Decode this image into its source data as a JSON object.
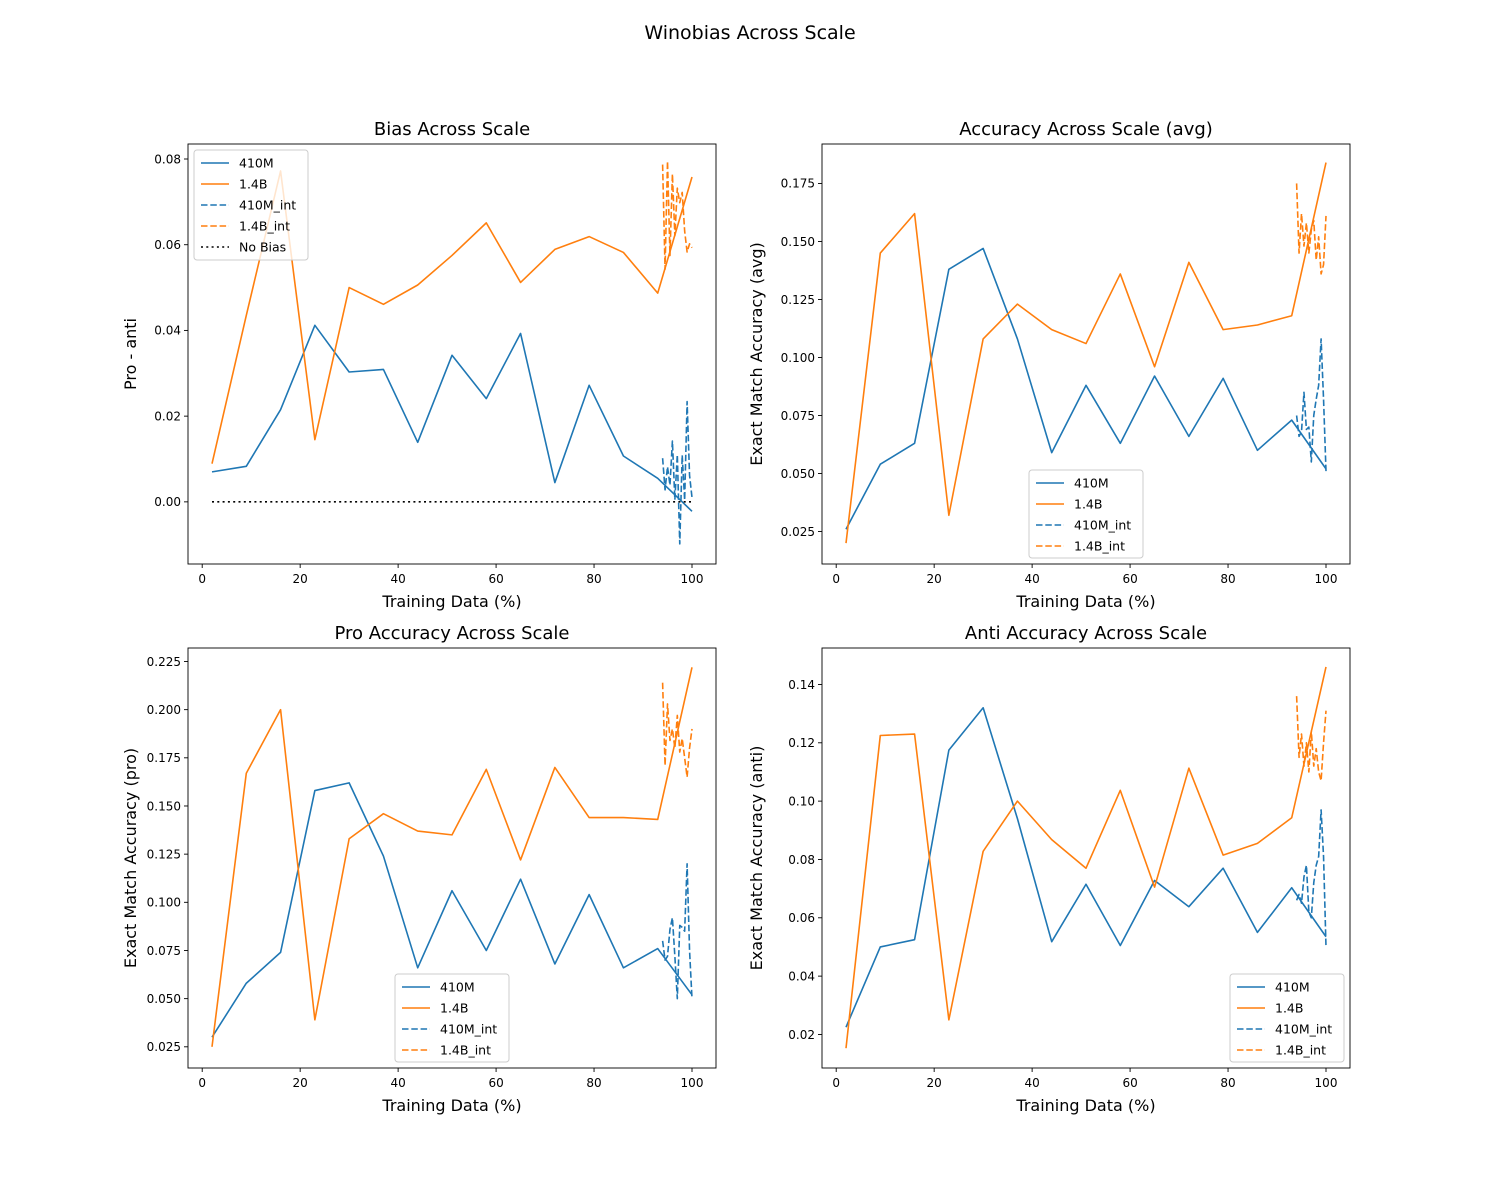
{
  "suptitle": "Winobias Across Scale",
  "colors": {
    "410M": "#1f77b4",
    "1.4B": "#ff7f0e",
    "no_bias": "#000000"
  },
  "chart_data": [
    {
      "type": "line",
      "title": "Bias Across Scale",
      "xlabel": "Training Data (%)",
      "ylabel": "Pro - anti",
      "xlim": [
        -2.9,
        104.9
      ],
      "ylim": [
        -0.0145,
        0.0835
      ],
      "xticks": [
        0,
        20,
        40,
        60,
        80,
        100
      ],
      "yticks": [
        0.0,
        0.02,
        0.04,
        0.06,
        0.08
      ],
      "ytick_labels": [
        "0.00",
        "0.02",
        "0.04",
        "0.06",
        "0.08"
      ],
      "legend_position": "upper-left",
      "series": [
        {
          "name": "410M",
          "color": "#1f77b4",
          "dash": "solid",
          "x": [
            2,
            9,
            16,
            23,
            30,
            37,
            44,
            51,
            58,
            65,
            72,
            79,
            86,
            93,
            100
          ],
          "y": [
            0.007,
            0.0083,
            0.0215,
            0.0412,
            0.0303,
            0.0309,
            0.0139,
            0.0342,
            0.0241,
            0.0393,
            0.0045,
            0.0272,
            0.0107,
            0.0055,
            -0.0022
          ]
        },
        {
          "name": "1.4B",
          "color": "#ff7f0e",
          "dash": "solid",
          "x": [
            2,
            9,
            16,
            23,
            30,
            37,
            44,
            51,
            58,
            65,
            72,
            79,
            86,
            93,
            100
          ],
          "y": [
            0.0089,
            0.0435,
            0.0772,
            0.0145,
            0.05,
            0.0461,
            0.0506,
            0.0575,
            0.0651,
            0.0512,
            0.0589,
            0.0619,
            0.0582,
            0.0487,
            0.0758
          ]
        },
        {
          "name": "410M_int",
          "color": "#1f77b4",
          "dash": "dashed",
          "x": [
            94,
            94.5,
            95,
            95.5,
            96,
            96.5,
            97,
            97.5,
            98,
            98.5,
            99,
            99.5,
            100
          ],
          "y": [
            0.0102,
            0.0028,
            0.0082,
            0.0039,
            0.0142,
            0.0005,
            0.011,
            -0.0098,
            0.0109,
            0.0004,
            0.0234,
            0.0062,
            0.001
          ]
        },
        {
          "name": "1.4B_int",
          "color": "#ff7f0e",
          "dash": "dashed",
          "x": [
            94,
            94.5,
            95,
            95.5,
            96,
            96.5,
            97,
            97.5,
            98,
            98.5,
            99,
            99.5,
            100
          ],
          "y": [
            0.0787,
            0.0543,
            0.0795,
            0.0575,
            0.0765,
            0.0621,
            0.0732,
            0.0698,
            0.0722,
            0.0632,
            0.0583,
            0.0602,
            0.0593
          ]
        },
        {
          "name": "No Bias",
          "color": "#000000",
          "dash": "dotted",
          "x": [
            2,
            100
          ],
          "y": [
            0,
            0
          ]
        }
      ]
    },
    {
      "type": "line",
      "title": "Accuracy Across Scale (avg)",
      "xlabel": "Training Data (%)",
      "ylabel": "Exact Match Accuracy (avg)",
      "xlim": [
        -2.9,
        104.9
      ],
      "ylim": [
        0.011,
        0.192
      ],
      "xticks": [
        0,
        20,
        40,
        60,
        80,
        100
      ],
      "yticks": [
        0.025,
        0.05,
        0.075,
        0.1,
        0.125,
        0.15,
        0.175
      ],
      "ytick_labels": [
        "0.025",
        "0.050",
        "0.075",
        "0.100",
        "0.125",
        "0.150",
        "0.175"
      ],
      "legend_position": "lower-center",
      "series": [
        {
          "name": "410M",
          "color": "#1f77b4",
          "dash": "solid",
          "x": [
            2,
            9,
            16,
            23,
            30,
            37,
            44,
            51,
            58,
            65,
            72,
            79,
            86,
            93,
            100
          ],
          "y": [
            0.026,
            0.054,
            0.063,
            0.138,
            0.147,
            0.108,
            0.059,
            0.088,
            0.063,
            0.092,
            0.066,
            0.091,
            0.06,
            0.073,
            0.052
          ]
        },
        {
          "name": "1.4B",
          "color": "#ff7f0e",
          "dash": "solid",
          "x": [
            2,
            9,
            16,
            23,
            30,
            37,
            44,
            51,
            58,
            65,
            72,
            79,
            86,
            93,
            100
          ],
          "y": [
            0.02,
            0.145,
            0.162,
            0.032,
            0.108,
            0.123,
            0.112,
            0.106,
            0.136,
            0.096,
            0.141,
            0.112,
            0.114,
            0.118,
            0.184
          ]
        },
        {
          "name": "410M_int",
          "color": "#1f77b4",
          "dash": "dashed",
          "x": [
            94,
            94.5,
            95,
            95.5,
            96,
            96.5,
            97,
            97.5,
            98,
            98.5,
            99,
            99.5,
            100
          ],
          "y": [
            0.075,
            0.066,
            0.068,
            0.085,
            0.069,
            0.07,
            0.055,
            0.075,
            0.082,
            0.088,
            0.108,
            0.082,
            0.051
          ]
        },
        {
          "name": "1.4B_int",
          "color": "#ff7f0e",
          "dash": "dashed",
          "x": [
            94,
            94.5,
            95,
            95.5,
            96,
            96.5,
            97,
            97.5,
            98,
            98.5,
            99,
            99.5,
            100
          ],
          "y": [
            0.175,
            0.145,
            0.162,
            0.148,
            0.158,
            0.145,
            0.155,
            0.159,
            0.142,
            0.152,
            0.136,
            0.14,
            0.161
          ]
        }
      ]
    },
    {
      "type": "line",
      "title": "Pro Accuracy Across Scale",
      "xlabel": "Training Data (%)",
      "ylabel": "Exact Match Accuracy (pro)",
      "xlim": [
        -2.9,
        104.9
      ],
      "ylim": [
        0.014,
        0.232
      ],
      "xticks": [
        0,
        20,
        40,
        60,
        80,
        100
      ],
      "yticks": [
        0.025,
        0.05,
        0.075,
        0.1,
        0.125,
        0.15,
        0.175,
        0.2,
        0.225
      ],
      "ytick_labels": [
        "0.025",
        "0.050",
        "0.075",
        "0.100",
        "0.125",
        "0.150",
        "0.175",
        "0.200",
        "0.225"
      ],
      "legend_position": "lower-center",
      "series": [
        {
          "name": "410M",
          "color": "#1f77b4",
          "dash": "solid",
          "x": [
            2,
            9,
            16,
            23,
            30,
            37,
            44,
            51,
            58,
            65,
            72,
            79,
            86,
            93,
            100
          ],
          "y": [
            0.03,
            0.058,
            0.074,
            0.158,
            0.162,
            0.124,
            0.066,
            0.106,
            0.075,
            0.112,
            0.068,
            0.104,
            0.066,
            0.076,
            0.052
          ]
        },
        {
          "name": "1.4B",
          "color": "#ff7f0e",
          "dash": "solid",
          "x": [
            2,
            9,
            16,
            23,
            30,
            37,
            44,
            51,
            58,
            65,
            72,
            79,
            86,
            93,
            100
          ],
          "y": [
            0.025,
            0.167,
            0.2,
            0.039,
            0.133,
            0.146,
            0.137,
            0.135,
            0.169,
            0.122,
            0.17,
            0.144,
            0.144,
            0.143,
            0.222
          ]
        },
        {
          "name": "410M_int",
          "color": "#1f77b4",
          "dash": "dashed",
          "x": [
            94,
            94.5,
            95,
            95.5,
            96,
            96.5,
            97,
            97.5,
            98,
            98.5,
            99,
            99.5,
            100
          ],
          "y": [
            0.08,
            0.07,
            0.072,
            0.086,
            0.092,
            0.072,
            0.05,
            0.088,
            0.087,
            0.085,
            0.12,
            0.075,
            0.05
          ]
        },
        {
          "name": "1.4B_int",
          "color": "#ff7f0e",
          "dash": "dashed",
          "x": [
            94,
            94.5,
            95,
            95.5,
            96,
            96.5,
            97,
            97.5,
            98,
            98.5,
            99,
            99.5,
            100
          ],
          "y": [
            0.214,
            0.171,
            0.203,
            0.184,
            0.19,
            0.18,
            0.197,
            0.178,
            0.185,
            0.175,
            0.165,
            0.18,
            0.19
          ]
        }
      ]
    },
    {
      "type": "line",
      "title": "Anti Accuracy Across Scale",
      "xlabel": "Training Data (%)",
      "ylabel": "Exact Match Accuracy (anti)",
      "xlim": [
        -2.9,
        104.9
      ],
      "ylim": [
        0.0085,
        0.1525
      ],
      "xticks": [
        0,
        20,
        40,
        60,
        80,
        100
      ],
      "yticks": [
        0.02,
        0.04,
        0.06,
        0.08,
        0.1,
        0.12,
        0.14
      ],
      "ytick_labels": [
        "0.02",
        "0.04",
        "0.06",
        "0.08",
        "0.10",
        "0.12",
        "0.14"
      ],
      "legend_position": "lower-right",
      "series": [
        {
          "name": "410M",
          "color": "#1f77b4",
          "dash": "solid",
          "x": [
            2,
            9,
            16,
            23,
            30,
            37,
            44,
            51,
            58,
            65,
            72,
            79,
            86,
            93,
            100
          ],
          "y": [
            0.0225,
            0.05,
            0.0525,
            0.1175,
            0.132,
            0.094,
            0.0518,
            0.0715,
            0.0505,
            0.0728,
            0.0638,
            0.077,
            0.055,
            0.0703,
            0.0535
          ]
        },
        {
          "name": "1.4B",
          "color": "#ff7f0e",
          "dash": "solid",
          "x": [
            2,
            9,
            16,
            23,
            30,
            37,
            44,
            51,
            58,
            65,
            72,
            79,
            86,
            93,
            100
          ],
          "y": [
            0.0153,
            0.1225,
            0.123,
            0.025,
            0.0828,
            0.1,
            0.0868,
            0.077,
            0.1037,
            0.0705,
            0.1113,
            0.0815,
            0.0855,
            0.0943,
            0.146
          ]
        },
        {
          "name": "410M_int",
          "color": "#1f77b4",
          "dash": "dashed",
          "x": [
            94,
            94.5,
            95,
            95.5,
            96,
            96.5,
            97,
            97.5,
            98,
            98.5,
            99,
            99.5,
            100
          ],
          "y": [
            0.066,
            0.068,
            0.065,
            0.074,
            0.078,
            0.062,
            0.06,
            0.072,
            0.078,
            0.081,
            0.097,
            0.081,
            0.05
          ]
        },
        {
          "name": "1.4B_int",
          "color": "#ff7f0e",
          "dash": "dashed",
          "x": [
            94,
            94.5,
            95,
            95.5,
            96,
            96.5,
            97,
            97.5,
            98,
            98.5,
            99,
            99.5,
            100
          ],
          "y": [
            0.136,
            0.115,
            0.123,
            0.112,
            0.12,
            0.11,
            0.124,
            0.112,
            0.118,
            0.11,
            0.107,
            0.12,
            0.131
          ]
        }
      ]
    }
  ]
}
